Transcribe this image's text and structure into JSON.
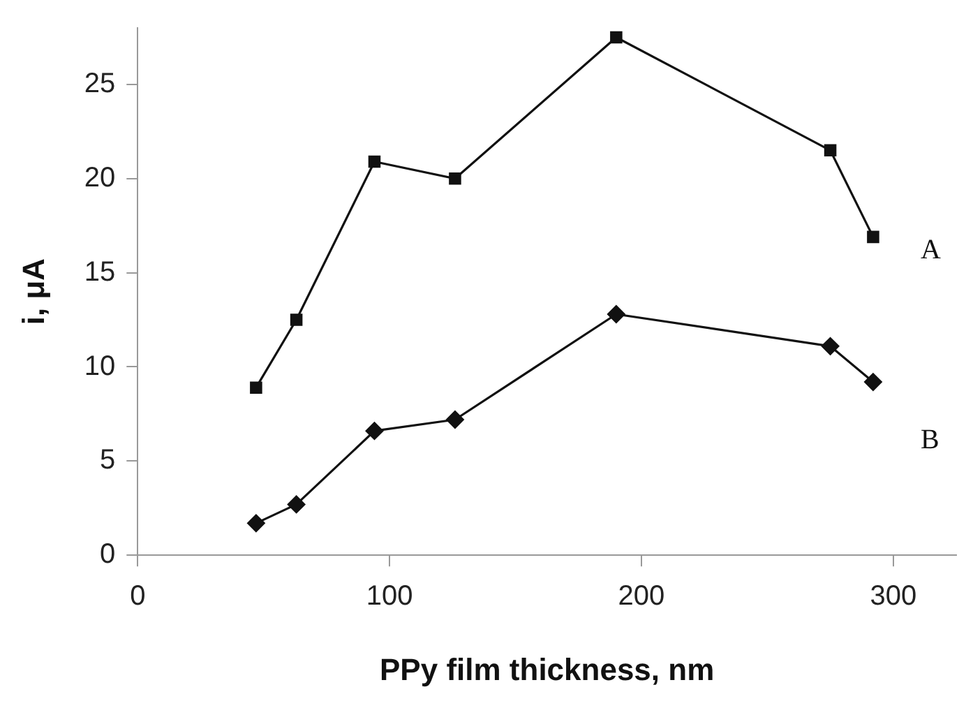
{
  "chart_data": {
    "type": "line",
    "xlabel": "PPy film thickness, nm",
    "ylabel": "i, μA",
    "xlim": [
      0,
      325
    ],
    "xticks": [
      0,
      100,
      200,
      300
    ],
    "ylim": [
      0,
      28
    ],
    "yticks": [
      0,
      5,
      10,
      15,
      20,
      25
    ],
    "grid": false,
    "legend": false,
    "series": [
      {
        "name": "A",
        "color": "#111111",
        "marker": "square",
        "x": [
          47,
          63,
          94,
          126,
          190,
          275,
          292
        ],
        "values": [
          8.9,
          12.5,
          20.9,
          20,
          27.5,
          21.5,
          16.9
        ]
      },
      {
        "name": "B",
        "color": "#111111",
        "marker": "diamond",
        "x": [
          47,
          63,
          94,
          126,
          190,
          275,
          292
        ],
        "values": [
          1.7,
          2.7,
          6.6,
          7.2,
          12.8,
          11.1,
          9.2
        ]
      }
    ]
  }
}
